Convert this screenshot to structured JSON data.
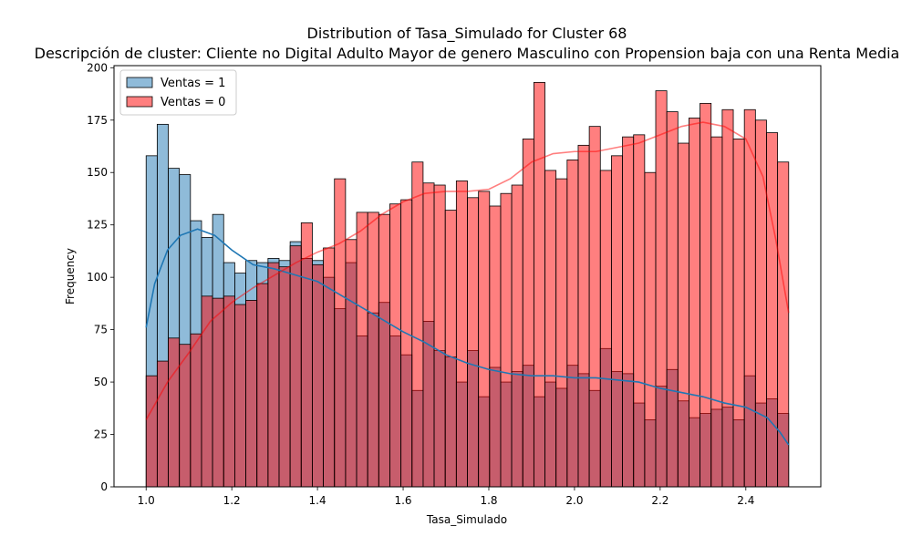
{
  "chart_data": {
    "type": "histogram",
    "title_line1": "Distribution of Tasa_Simulado for Cluster 68",
    "title_line2": "Descripción de cluster: Cliente no Digital Adulto Mayor de genero Masculino con Propension baja con una Renta Media",
    "xlabel": "Tasa_Simulado",
    "ylabel": "Frequency",
    "xlim": [
      0.925,
      2.575
    ],
    "ylim": [
      0,
      201
    ],
    "bin_start": 1.0,
    "bin_end": 2.5,
    "x_ticks": [
      1.0,
      1.2,
      1.4,
      1.6,
      1.8,
      2.0,
      2.2,
      2.4
    ],
    "x_tick_labels": [
      "1.0",
      "1.2",
      "1.4",
      "1.6",
      "1.8",
      "2.0",
      "2.2",
      "2.4"
    ],
    "y_ticks": [
      0,
      25,
      50,
      75,
      100,
      125,
      150,
      175,
      200
    ],
    "y_tick_labels": [
      "0",
      "25",
      "50",
      "75",
      "100",
      "125",
      "150",
      "175",
      "200"
    ],
    "legend_position": "upper-left",
    "series": [
      {
        "name": "Ventas = 1",
        "color": "#1f77b4",
        "values": [
          158,
          173,
          152,
          149,
          127,
          119,
          130,
          107,
          102,
          108,
          107,
          109,
          108,
          117,
          109,
          108,
          100,
          85,
          107,
          72,
          83,
          88,
          72,
          63,
          46,
          79,
          65,
          62,
          50,
          65,
          43,
          57,
          50,
          55,
          58,
          43,
          50,
          47,
          58,
          54,
          46,
          66,
          55,
          54,
          40,
          32,
          48,
          56,
          41,
          33,
          35,
          37,
          38,
          32,
          53,
          40,
          42,
          35
        ],
        "kde": [
          [
            1.0,
            76
          ],
          [
            1.02,
            97
          ],
          [
            1.05,
            113
          ],
          [
            1.08,
            120
          ],
          [
            1.12,
            123
          ],
          [
            1.16,
            120
          ],
          [
            1.2,
            113
          ],
          [
            1.25,
            106
          ],
          [
            1.3,
            104
          ],
          [
            1.35,
            101
          ],
          [
            1.4,
            98
          ],
          [
            1.45,
            92
          ],
          [
            1.5,
            86
          ],
          [
            1.55,
            80
          ],
          [
            1.6,
            74
          ],
          [
            1.65,
            69
          ],
          [
            1.7,
            63
          ],
          [
            1.75,
            59
          ],
          [
            1.8,
            56
          ],
          [
            1.85,
            54
          ],
          [
            1.9,
            53
          ],
          [
            1.95,
            53
          ],
          [
            2.0,
            52
          ],
          [
            2.05,
            52
          ],
          [
            2.1,
            51
          ],
          [
            2.15,
            50
          ],
          [
            2.2,
            47
          ],
          [
            2.25,
            45
          ],
          [
            2.3,
            43
          ],
          [
            2.35,
            40
          ],
          [
            2.4,
            38
          ],
          [
            2.45,
            33
          ],
          [
            2.48,
            26
          ],
          [
            2.5,
            20
          ]
        ]
      },
      {
        "name": "Ventas = 0",
        "color": "#ff0000",
        "values": [
          53,
          60,
          71,
          68,
          73,
          91,
          90,
          91,
          87,
          89,
          97,
          107,
          105,
          115,
          126,
          106,
          114,
          147,
          118,
          131,
          131,
          130,
          135,
          137,
          155,
          145,
          144,
          132,
          146,
          138,
          141,
          134,
          140,
          144,
          166,
          193,
          151,
          147,
          156,
          163,
          172,
          151,
          158,
          167,
          168,
          150,
          189,
          179,
          164,
          176,
          183,
          167,
          180,
          166,
          180,
          175,
          169,
          155
        ],
        "kde": [
          [
            1.0,
            32
          ],
          [
            1.05,
            50
          ],
          [
            1.1,
            64
          ],
          [
            1.15,
            79
          ],
          [
            1.2,
            88
          ],
          [
            1.25,
            95
          ],
          [
            1.3,
            101
          ],
          [
            1.35,
            107
          ],
          [
            1.4,
            112
          ],
          [
            1.45,
            116
          ],
          [
            1.5,
            122
          ],
          [
            1.55,
            130
          ],
          [
            1.6,
            136
          ],
          [
            1.65,
            140
          ],
          [
            1.7,
            141
          ],
          [
            1.75,
            141
          ],
          [
            1.8,
            142
          ],
          [
            1.85,
            147
          ],
          [
            1.9,
            155
          ],
          [
            1.95,
            159
          ],
          [
            2.0,
            160
          ],
          [
            2.05,
            160
          ],
          [
            2.1,
            162
          ],
          [
            2.15,
            164
          ],
          [
            2.2,
            168
          ],
          [
            2.25,
            172
          ],
          [
            2.3,
            174
          ],
          [
            2.35,
            172
          ],
          [
            2.4,
            166
          ],
          [
            2.44,
            148
          ],
          [
            2.47,
            118
          ],
          [
            2.5,
            83
          ]
        ]
      }
    ],
    "overlap_color": "#c9515e"
  }
}
